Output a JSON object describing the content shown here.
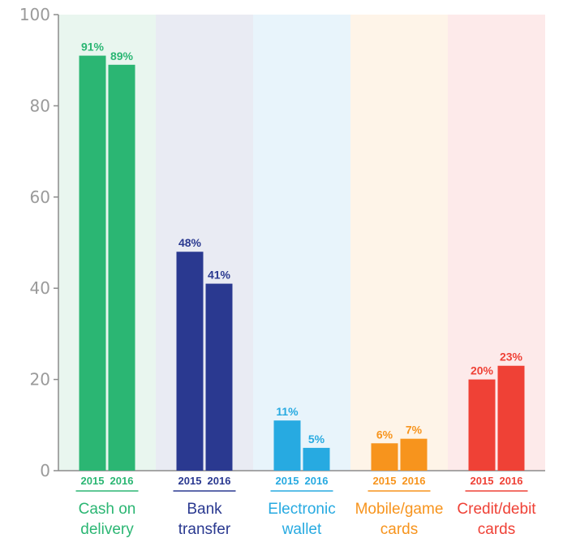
{
  "chart_data": {
    "type": "bar",
    "title": "",
    "xlabel": "",
    "ylabel": "",
    "ylim": [
      0,
      100
    ],
    "yticks": [
      "0",
      "20",
      "40",
      "60",
      "80",
      "100"
    ],
    "grid": false,
    "categories": [
      {
        "label_lines": [
          "Cash on",
          "delivery"
        ],
        "color": "#2bb673",
        "band_color": "#e9f6ef"
      },
      {
        "label_lines": [
          "Bank",
          "transfer"
        ],
        "color": "#2a3990",
        "band_color": "#e9ebf3"
      },
      {
        "label_lines": [
          "Electronic",
          "wallet"
        ],
        "color": "#27aae1",
        "band_color": "#e8f4fb"
      },
      {
        "label_lines": [
          "Mobile/game",
          "cards"
        ],
        "color": "#f7941d",
        "band_color": "#fef4e8"
      },
      {
        "label_lines": [
          "Credit/debit",
          "cards"
        ],
        "color": "#ef4136",
        "band_color": "#fdeaea"
      }
    ],
    "series": [
      {
        "year_label": "2015",
        "values": [
          91,
          48,
          11,
          6,
          20
        ],
        "value_labels": [
          "91%",
          "48%",
          "11%",
          "6%",
          "20%"
        ]
      },
      {
        "year_label": "2016",
        "values": [
          89,
          41,
          5,
          7,
          23
        ],
        "value_labels": [
          "89%",
          "41%",
          "5%",
          "7%",
          "23%"
        ]
      }
    ]
  }
}
